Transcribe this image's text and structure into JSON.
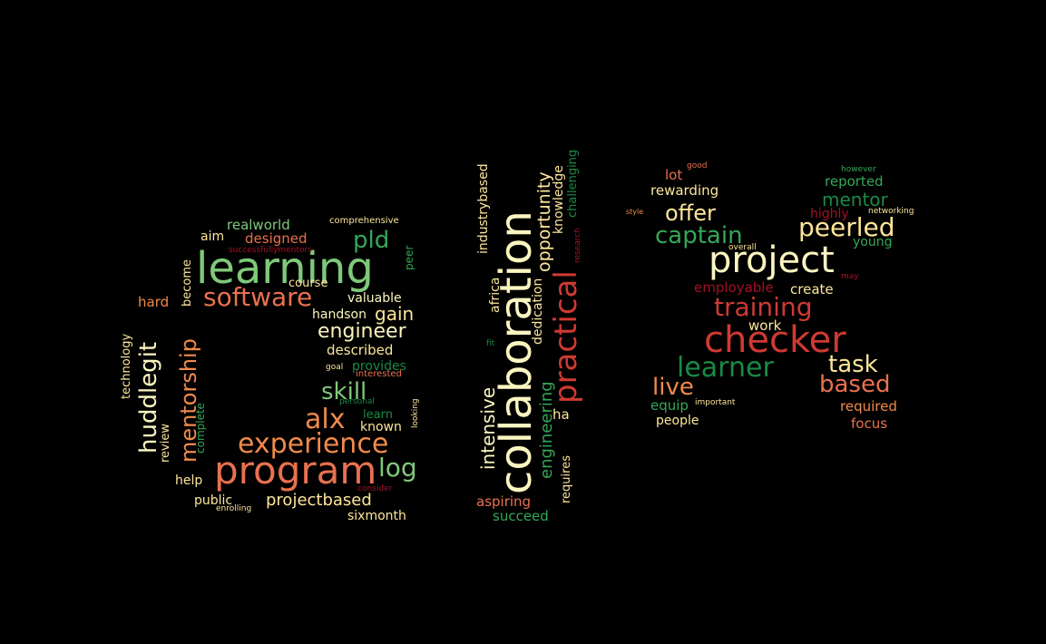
{
  "palette": {
    "background": "#000000",
    "red": "#cf3a32",
    "dark_red": "#a50f26",
    "orange": "#f08a4b",
    "salmon": "#e9714f",
    "yellow": "#fde69a",
    "pale": "#fbf5c0",
    "light_green": "#7fc97a",
    "green": "#34a758",
    "dark_green": "#1a8a46"
  },
  "words": [
    "learning",
    "program",
    "experience",
    "software",
    "alx",
    "skill",
    "engineer",
    "pld",
    "gain",
    "log",
    "mentorship",
    "huddlegit",
    "described",
    "provides",
    "known",
    "learn",
    "projectbased",
    "sixmonth",
    "public",
    "help",
    "review",
    "complete",
    "technology",
    "hard",
    "become",
    "course",
    "valuable",
    "handson",
    "designed",
    "aim",
    "realworld",
    "comprehensive",
    "successfullymentors",
    "peer",
    "goal",
    "interested",
    "personal",
    "looking",
    "consider",
    "enrolling",
    "collaboration",
    "practical",
    "opportunity",
    "knowledge",
    "challenging",
    "research",
    "industrybased",
    "africa",
    "intensive",
    "engineering",
    "dedication",
    "fit",
    "requires",
    "ha",
    "aspiring",
    "succeed",
    "project",
    "checker",
    "learner",
    "training",
    "captain",
    "offer",
    "peerled",
    "mentor",
    "task",
    "based",
    "live",
    "employable",
    "create",
    "work",
    "rewarding",
    "lot",
    "good",
    "reported",
    "however",
    "highly",
    "networking",
    "style",
    "young",
    "overall",
    "may",
    "equip",
    "important",
    "people",
    "required",
    "focus"
  ]
}
